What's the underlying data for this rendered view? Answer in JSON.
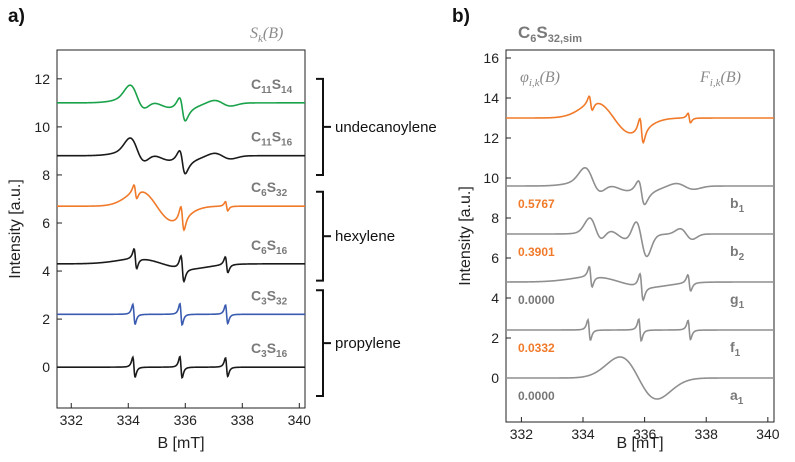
{
  "figure": {
    "panel_a_label": "a)",
    "panel_b_label": "b)",
    "panel_a_title": "S_k(B)",
    "panel_b_header": "C6S32,sim",
    "panel_b_phi_title": "φ_i,k(B)",
    "panel_b_F_title": "F_i,k(B)"
  },
  "colors": {
    "green": "#1aa24a",
    "orange": "#f07a2a",
    "blue": "#3a5cb0",
    "black": "#1a1a1a",
    "gray": "#8f8f8f",
    "weight_orange": "#f07a2a",
    "weight_gray": "#777777"
  },
  "chart_data": [
    {
      "type": "line",
      "title": "S_k(B)",
      "xlabel": "B [mT]",
      "ylabel": "Intensity [a.u.]",
      "xlim": [
        331.5,
        340.2
      ],
      "ylim": [
        -1.7,
        13.2
      ],
      "xticks": [
        332,
        334,
        336,
        338,
        340
      ],
      "yticks": [
        0,
        2,
        4,
        6,
        8,
        10,
        12
      ],
      "series": [
        {
          "name": "C11S14",
          "label_main1": "C",
          "label_sub1": "11",
          "label_main2": "S",
          "label_sub2": "14",
          "baseline": 11.0,
          "color": "green",
          "shape": "broad"
        },
        {
          "name": "C11S16",
          "label_main1": "C",
          "label_sub1": "11",
          "label_main2": "S",
          "label_sub2": "16",
          "baseline": 8.8,
          "color": "black",
          "shape": "broad"
        },
        {
          "name": "C6S32",
          "label_main1": "C",
          "label_sub1": "6",
          "label_main2": "S",
          "label_sub2": "32",
          "baseline": 6.7,
          "color": "orange",
          "shape": "mixed"
        },
        {
          "name": "C6S16",
          "label_main1": "C",
          "label_sub1": "6",
          "label_main2": "S",
          "label_sub2": "16",
          "baseline": 4.3,
          "color": "black",
          "shape": "sharp-mixed"
        },
        {
          "name": "C3S32",
          "label_main1": "C",
          "label_sub1": "3",
          "label_main2": "S",
          "label_sub2": "32",
          "baseline": 2.2,
          "color": "blue",
          "shape": "sharp"
        },
        {
          "name": "C3S16",
          "label_main1": "C",
          "label_sub1": "3",
          "label_main2": "S",
          "label_sub2": "16",
          "baseline": 0.0,
          "color": "black",
          "shape": "sharp"
        }
      ],
      "groups": [
        {
          "label": "undecanoylene",
          "range": [
            8.0,
            12.0
          ]
        },
        {
          "label": "hexylene",
          "range": [
            3.6,
            7.3
          ]
        },
        {
          "label": "propylene",
          "range": [
            -1.2,
            3.2
          ]
        }
      ]
    },
    {
      "type": "line",
      "title": "C6S32,sim",
      "xlabel": "B [mT]",
      "ylabel": "Intensity [a.u.]",
      "xlim": [
        331.5,
        340.2
      ],
      "ylim": [
        -2.2,
        16.4
      ],
      "xticks": [
        332,
        334,
        336,
        338,
        340
      ],
      "yticks": [
        0,
        2,
        4,
        6,
        8,
        10,
        12,
        14,
        16
      ],
      "series": [
        {
          "name": "C6S32,sim",
          "label_main": "",
          "label_sub": "",
          "weight": "",
          "baseline": 13.0,
          "color": "orange",
          "shape": "mixed"
        },
        {
          "name": "b1",
          "label_main": "b",
          "label_sub": "1",
          "weight": "0.5767",
          "weight_color": "weight_orange",
          "baseline": 9.6,
          "color": "gray",
          "shape": "broad"
        },
        {
          "name": "b2",
          "label_main": "b",
          "label_sub": "2",
          "weight": "0.3901",
          "weight_color": "weight_orange",
          "baseline": 7.2,
          "color": "gray",
          "shape": "medium"
        },
        {
          "name": "g1",
          "label_main": "g",
          "label_sub": "1",
          "weight": "0.0000",
          "weight_color": "weight_gray",
          "baseline": 4.8,
          "color": "gray",
          "shape": "sharp-mixed"
        },
        {
          "name": "f1",
          "label_main": "f",
          "label_sub": "1",
          "weight": "0.0332",
          "weight_color": "weight_orange",
          "baseline": 2.4,
          "color": "gray",
          "shape": "sharp"
        },
        {
          "name": "a1",
          "label_main": "a",
          "label_sub": "1",
          "weight": "0.0000",
          "weight_color": "weight_gray",
          "baseline": 0.0,
          "color": "gray",
          "shape": "very-broad"
        }
      ]
    }
  ]
}
